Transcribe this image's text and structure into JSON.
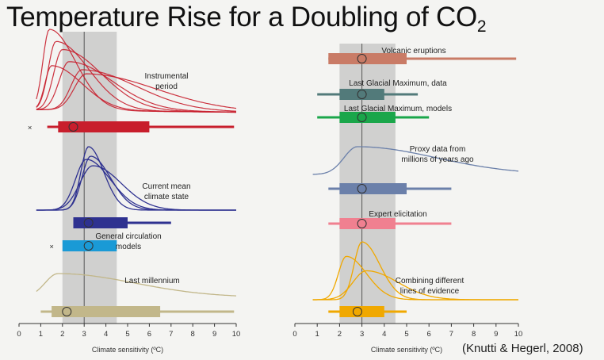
{
  "title": {
    "main": "Temperature Rise for a Doubling of CO",
    "sub": "2"
  },
  "citation": "(Knutti & Hegerl, 2008)",
  "chart_data": [
    {
      "type": "range",
      "panel": "left",
      "xlabel": "Climate sensitivity (ºC)",
      "xlim": [
        0,
        10
      ],
      "xticks": [
        "0",
        "1",
        "2",
        "3",
        "4",
        "5",
        "6",
        "7",
        "8",
        "9",
        "10"
      ],
      "likely_range": [
        2,
        4.5
      ],
      "most_likely": 3,
      "rows": [
        {
          "label": "Instrumental period",
          "color": "#c81e2c",
          "curve": "multi-peak",
          "whisker": [
            1.3,
            9.9
          ],
          "box": [
            1.8,
            6.0
          ],
          "median": 2.5,
          "x_mark": 0.5
        },
        {
          "label": "Current mean climate state",
          "color": "#2e3190",
          "curve": "peak",
          "whisker": [
            2.5,
            7.0
          ],
          "box": [
            2.5,
            5.0
          ],
          "median": 3.2
        },
        {
          "label": "General circulation models",
          "color": "#1a9ad6",
          "box": [
            2.0,
            4.5
          ],
          "median": 3.2,
          "x_mark": 1.5
        },
        {
          "label": "Last millennium",
          "color": "#c2b78a",
          "curve": "broad",
          "whisker": [
            1.0,
            9.9
          ],
          "box": [
            1.5,
            6.5
          ],
          "median": 2.2
        }
      ]
    },
    {
      "type": "range",
      "panel": "right",
      "xlabel": "Climate sensitivity (ºC)",
      "xlim": [
        0,
        10
      ],
      "xticks": [
        "0",
        "1",
        "2",
        "3",
        "4",
        "5",
        "6",
        "7",
        "8",
        "9",
        "10"
      ],
      "likely_range": [
        2,
        4.5
      ],
      "most_likely": 3,
      "rows": [
        {
          "label": "Volcanic eruptions",
          "color": "#c97b66",
          "whisker": [
            1.5,
            9.9
          ],
          "box": [
            1.5,
            5.0
          ],
          "median": 3.0
        },
        {
          "label": "Last Glacial Maximum, data",
          "color": "#527a7a",
          "whisker": [
            1.0,
            5.5
          ],
          "box": [
            2.0,
            4.0
          ],
          "median": 3.0
        },
        {
          "label": "Last Glacial Maximum, models",
          "color": "#1aa64a",
          "whisker": [
            1.0,
            6.0
          ],
          "box": [
            2.0,
            4.5
          ],
          "median": 3.0
        },
        {
          "label": "Proxy data from millions of years ago",
          "color": "#6b80aa",
          "curve": "broad",
          "whisker": [
            1.5,
            7.0
          ],
          "box": [
            2.0,
            5.0
          ],
          "median": 3.0
        },
        {
          "label": "Expert elicitation",
          "color": "#f08090",
          "whisker": [
            1.5,
            7.0
          ],
          "box": [
            2.0,
            4.5
          ],
          "median": 3.0
        },
        {
          "label": "Combining different lines of evidence",
          "color": "#f0a800",
          "curve": "multi-peak",
          "whisker": [
            1.5,
            5.0
          ],
          "box": [
            2.0,
            4.0
          ],
          "median": 2.8
        }
      ]
    }
  ]
}
